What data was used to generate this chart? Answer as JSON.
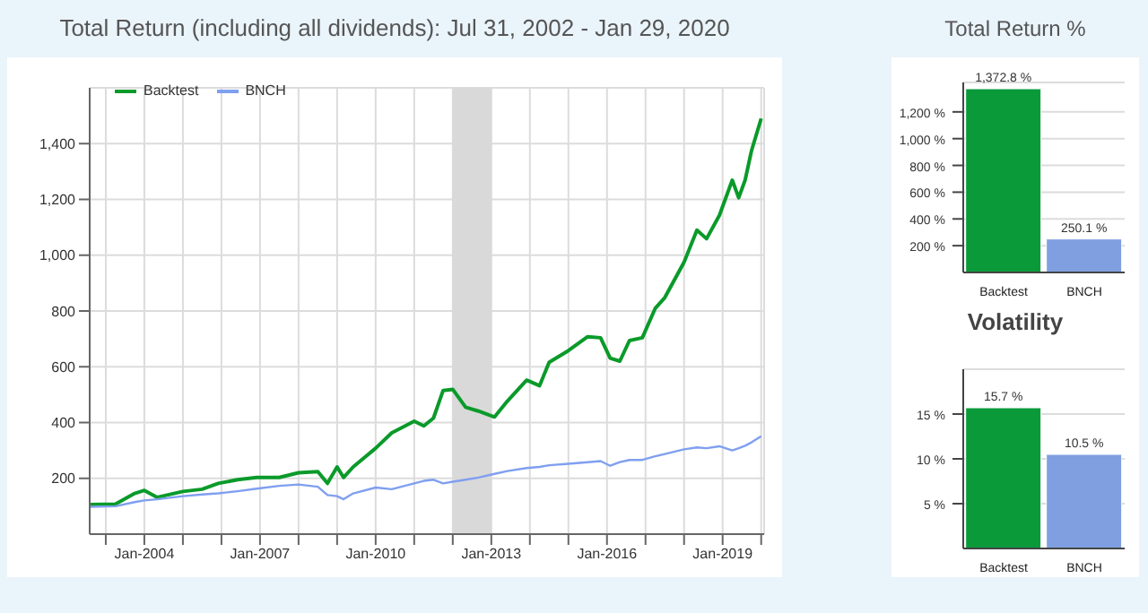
{
  "chart_data": [
    {
      "type": "line",
      "title": "Total Return (including all dividends): Jul 31, 2002 - Jan 29, 2020",
      "x": [
        "2002-08",
        "2003-04",
        "2003-10",
        "2004-01",
        "2004-05",
        "2005-01",
        "2005-07",
        "2005-12",
        "2006-06",
        "2006-12",
        "2007-07",
        "2008-01",
        "2008-07",
        "2008-10",
        "2009-01",
        "2009-03",
        "2009-06",
        "2010-01",
        "2010-06",
        "2011-01",
        "2011-04",
        "2011-07",
        "2011-10",
        "2012-01",
        "2012-05",
        "2012-09",
        "2013-02",
        "2013-06",
        "2013-12",
        "2014-04",
        "2014-07",
        "2015-01",
        "2015-07",
        "2015-11",
        "2016-02",
        "2016-05",
        "2016-08",
        "2016-12",
        "2017-04",
        "2017-07",
        "2018-01",
        "2018-05",
        "2018-08",
        "2018-12",
        "2019-04",
        "2019-06",
        "2019-08",
        "2019-10",
        "2020-01"
      ],
      "series": [
        {
          "name": "Backtest",
          "color": "#0a9a2a",
          "values": [
            106,
            108,
            146,
            157,
            132,
            153,
            161,
            182,
            195,
            203,
            203,
            220,
            224,
            182,
            241,
            203,
            241,
            308,
            363,
            405,
            388,
            416,
            515,
            519,
            455,
            441,
            420,
            477,
            552,
            532,
            616,
            658,
            708,
            704,
            631,
            620,
            694,
            704,
            809,
            848,
            975,
            1090,
            1059,
            1143,
            1269,
            1206,
            1269,
            1375,
            1490
          ]
        },
        {
          "name": "BNCH",
          "color": "#7f9ff0",
          "values": [
            98,
            100,
            115,
            121,
            125,
            136,
            142,
            146,
            154,
            163,
            173,
            178,
            170,
            140,
            136,
            125,
            146,
            167,
            161,
            182,
            191,
            195,
            182,
            188,
            195,
            203,
            216,
            226,
            237,
            241,
            247,
            252,
            258,
            262,
            245,
            258,
            266,
            266,
            279,
            287,
            304,
            311,
            308,
            315,
            300,
            308,
            317,
            329,
            351
          ]
        }
      ],
      "xlim": [
        "2002-07-31",
        "2020-01-29"
      ],
      "xticks": [
        {
          "value": "2003-01",
          "label": null
        },
        {
          "value": "2004-01",
          "label": "Jan-2004"
        },
        {
          "value": "2005-01",
          "label": null
        },
        {
          "value": "2006-01",
          "label": null
        },
        {
          "value": "2007-01",
          "label": "Jan-2007"
        },
        {
          "value": "2008-01",
          "label": null
        },
        {
          "value": "2009-01",
          "label": null
        },
        {
          "value": "2010-01",
          "label": "Jan-2010"
        },
        {
          "value": "2011-01",
          "label": null
        },
        {
          "value": "2012-01",
          "label": null
        },
        {
          "value": "2013-01",
          "label": "Jan-2013"
        },
        {
          "value": "2014-01",
          "label": null
        },
        {
          "value": "2015-01",
          "label": null
        },
        {
          "value": "2016-01",
          "label": "Jan-2016"
        },
        {
          "value": "2017-01",
          "label": null
        },
        {
          "value": "2018-01",
          "label": null
        },
        {
          "value": "2019-01",
          "label": "Jan-2019"
        },
        {
          "value": "2020-01",
          "label": null
        }
      ],
      "ylim": [
        0,
        1600
      ],
      "yticks": [
        {
          "value": 200,
          "label": "200"
        },
        {
          "value": 400,
          "label": "400"
        },
        {
          "value": 600,
          "label": "600"
        },
        {
          "value": 800,
          "label": "800"
        },
        {
          "value": 1000,
          "label": "1,000"
        },
        {
          "value": 1200,
          "label": "1,200"
        },
        {
          "value": 1400,
          "label": "1,400"
        }
      ],
      "bands": [
        {
          "axis": "x",
          "from": "2012-01",
          "to": "2013-01",
          "color": "#d9d9d9"
        }
      ],
      "grid": true,
      "legend": "top left",
      "marker": "none",
      "line_style": "solid"
    },
    {
      "type": "bar",
      "title": "Total Return %",
      "categories": [
        "Backtest",
        "BNCH"
      ],
      "values": [
        1372.8,
        250.1
      ],
      "colors": [
        "#0a9a3a",
        "#7f9fe0"
      ],
      "value_labels": [
        "1,372.8 %",
        "250.1 %"
      ],
      "ylim": [
        0,
        1420
      ],
      "yticks": [
        {
          "value": 200,
          "label": "200 %"
        },
        {
          "value": 400,
          "label": "400 %"
        },
        {
          "value": 600,
          "label": "600 %"
        },
        {
          "value": 800,
          "label": "800 %"
        },
        {
          "value": 1000,
          "label": "1,000 %"
        },
        {
          "value": 1200,
          "label": "1,200 %"
        }
      ],
      "grid": "y"
    },
    {
      "type": "bar",
      "title": "Volatility",
      "categories": [
        "Backtest",
        "BNCH"
      ],
      "values": [
        15.7,
        10.5
      ],
      "colors": [
        "#0a9a3a",
        "#7f9fe0"
      ],
      "value_labels": [
        "15.7 %",
        "10.5 %"
      ],
      "ylim": [
        0,
        20
      ],
      "yticks": [
        {
          "value": 5,
          "label": "5 %"
        },
        {
          "value": 10,
          "label": "10 %"
        },
        {
          "value": 15,
          "label": "15 %"
        }
      ],
      "grid": "y"
    }
  ]
}
